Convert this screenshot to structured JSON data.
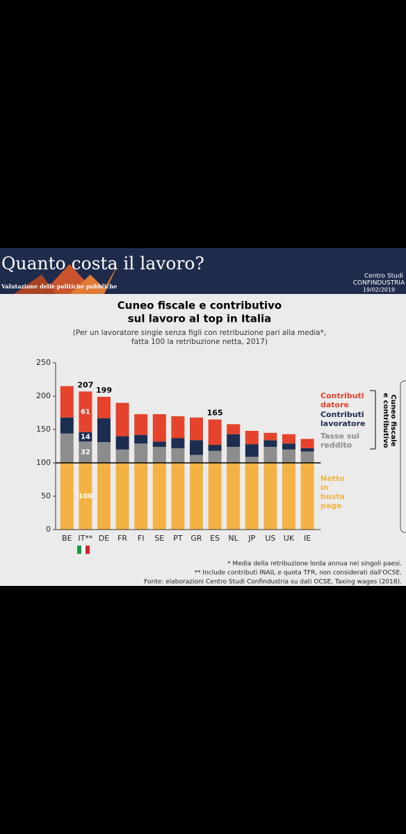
{
  "header": {
    "title": "Quanto costa il lavoro?",
    "subtitle": "Valutazione delle politiche pubbliche",
    "org_line1": "Centro Studi",
    "org_line2": "CONFINDUSTRIA",
    "date": "19/02/2019"
  },
  "chart_data": {
    "type": "stacked_bar",
    "title": [
      "Cuneo fiscale e contributivo",
      "sul lavoro al top in Italia"
    ],
    "subtitle": [
      "(Per un lavoratore single senza figli con retribuzione pari alla media*,",
      "fatta 100 la retribuzione netta, 2017)"
    ],
    "categories": [
      "BE",
      "IT**",
      "DE",
      "FR",
      "FI",
      "SE",
      "PT",
      "GR",
      "ES",
      "NL",
      "JP",
      "US",
      "UK",
      "IE"
    ],
    "series": [
      {
        "name": "Netto in busta paga",
        "color": "#f4b245",
        "values": [
          100,
          100,
          100,
          100,
          100,
          100,
          100,
          100,
          100,
          100,
          100,
          100,
          100,
          100
        ]
      },
      {
        "name": "Tasse sul reddito",
        "color": "#8d8d8d",
        "values": [
          44,
          32,
          31,
          20,
          29,
          24,
          22,
          12,
          18,
          24,
          9,
          24,
          20,
          17
        ]
      },
      {
        "name": "Contributi lavoratore",
        "color": "#1c2d50",
        "values": [
          24,
          14,
          36,
          20,
          13,
          8,
          15,
          22,
          9,
          19,
          19,
          10,
          9,
          5
        ]
      },
      {
        "name": "Contributi datore",
        "color": "#e5432c",
        "values": [
          47,
          61,
          32,
          50,
          31,
          41,
          33,
          34,
          38,
          15,
          20,
          11,
          14,
          14
        ]
      }
    ],
    "totals": [
      null,
      207,
      199,
      null,
      null,
      null,
      null,
      null,
      165,
      null,
      null,
      null,
      null,
      null
    ],
    "data_labels_for": "IT**",
    "reference_line": 100,
    "ylim": [
      0,
      250
    ],
    "yticks": [
      0,
      50,
      100,
      150,
      200,
      250
    ],
    "bracket_label": [
      "Cuneo fiscale",
      "e contributivo"
    ],
    "notes": [
      "* Media della retribuzione lorda annua nei singoli paesi.",
      "** Include contributi INAIL e quota TFR, non considerati dall'OCSE.",
      "Fonte: elaborazioni Centro Studi Confindustria su dati OCSE, Taxing wages (2018)."
    ]
  }
}
